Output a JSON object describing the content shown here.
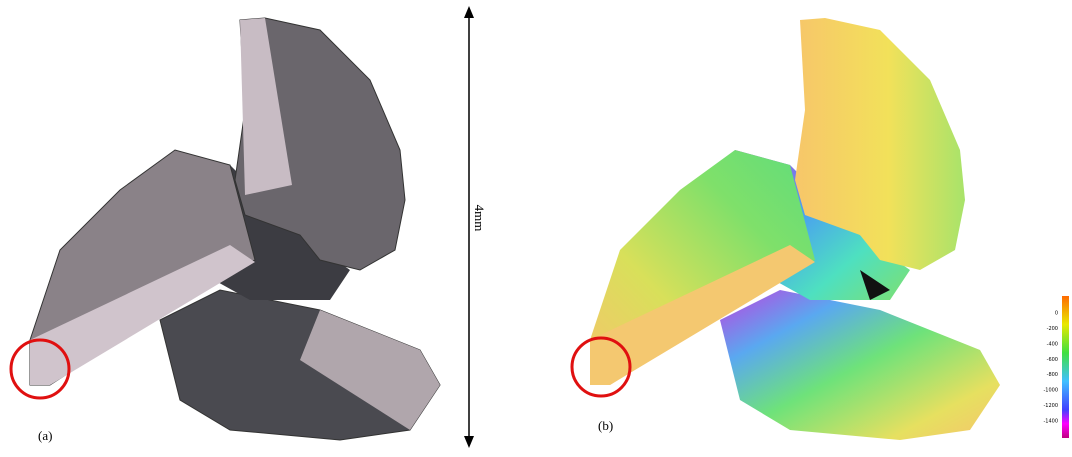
{
  "panels": [
    {
      "label": "(a)"
    },
    {
      "label": "(b)"
    }
  ],
  "scale_label": "4mm",
  "colorbar": {
    "ticks": [
      0,
      -200,
      -400,
      -600,
      -800,
      -1000,
      -1200,
      -1400
    ]
  }
}
